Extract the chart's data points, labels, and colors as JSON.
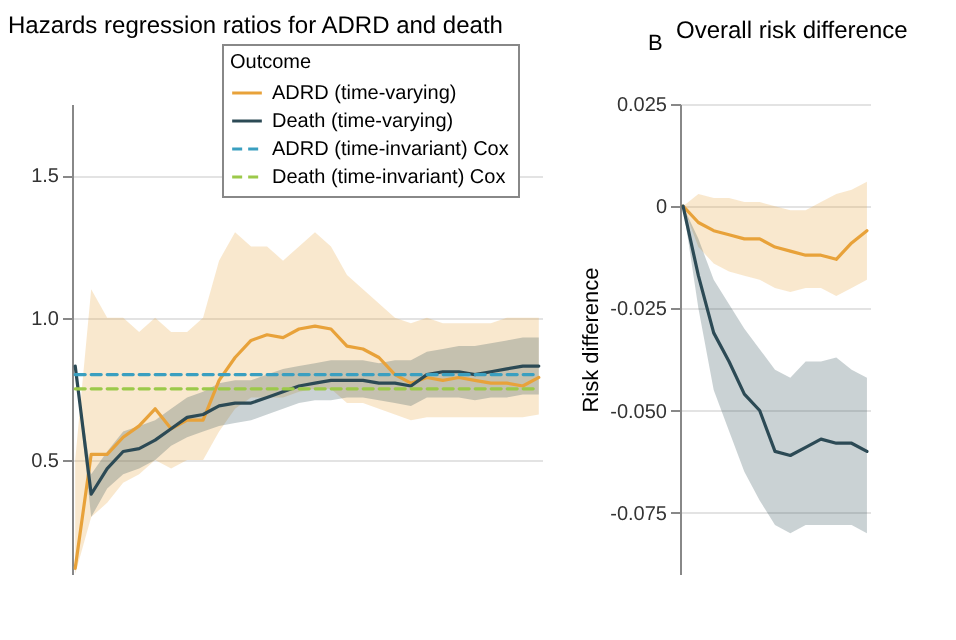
{
  "chart_data": [
    {
      "type": "line",
      "title": "Hazards regression ratios for ADRD and death",
      "legend_title": "Outcome",
      "legend": "top right",
      "grid": "y",
      "categories": [
        null,
        null,
        null,
        null,
        null,
        null,
        null,
        null,
        null,
        null,
        null,
        null,
        null,
        null,
        null,
        null,
        null,
        null,
        null,
        null,
        null,
        null,
        null,
        null,
        null,
        null,
        null,
        null,
        null,
        null
      ],
      "ylim": [
        0.1,
        1.75
      ],
      "yticks": [
        0.5,
        {
          "value": 1.0,
          "label": "1.0"
        },
        1.5
      ],
      "series": [
        {
          "name": "ADRD (time-varying)",
          "color": "#e8a23a",
          "values": [
            0.12,
            0.52,
            0.52,
            0.58,
            0.62,
            0.68,
            0.61,
            0.64,
            0.64,
            0.78,
            0.86,
            0.92,
            0.94,
            0.93,
            0.96,
            0.97,
            0.96,
            0.9,
            0.89,
            0.86,
            0.8,
            0.77,
            0.79,
            0.78,
            0.79,
            0.78,
            0.77,
            0.77,
            0.76,
            0.79
          ],
          "lower": [
            0.1,
            0.3,
            0.35,
            0.42,
            0.45,
            0.5,
            0.47,
            0.5,
            0.5,
            0.6,
            0.68,
            0.72,
            0.72,
            0.72,
            0.74,
            0.75,
            0.75,
            0.7,
            0.7,
            0.68,
            0.66,
            0.64,
            0.65,
            0.65,
            0.65,
            0.65,
            0.65,
            0.65,
            0.65,
            0.66
          ],
          "upper": [
            0.5,
            1.1,
            1.0,
            1.0,
            0.95,
            1.0,
            0.95,
            0.95,
            1.0,
            1.2,
            1.3,
            1.25,
            1.25,
            1.2,
            1.25,
            1.3,
            1.25,
            1.15,
            1.1,
            1.05,
            1.0,
            0.98,
            1.0,
            0.98,
            0.98,
            0.98,
            0.98,
            1.0,
            1.0,
            1.0
          ]
        },
        {
          "name": "Death (time-varying)",
          "color": "#2c4a55",
          "values": [
            0.83,
            0.38,
            0.47,
            0.53,
            0.54,
            0.57,
            0.61,
            0.65,
            0.66,
            0.69,
            0.7,
            0.7,
            0.72,
            0.74,
            0.76,
            0.77,
            0.78,
            0.78,
            0.78,
            0.77,
            0.77,
            0.76,
            0.8,
            0.81,
            0.81,
            0.8,
            0.81,
            0.82,
            0.83,
            0.83
          ],
          "lower": [
            0.83,
            0.3,
            0.4,
            0.45,
            0.47,
            0.5,
            0.55,
            0.58,
            0.6,
            0.62,
            0.63,
            0.64,
            0.66,
            0.68,
            0.7,
            0.71,
            0.71,
            0.72,
            0.72,
            0.71,
            0.7,
            0.69,
            0.72,
            0.72,
            0.72,
            0.71,
            0.72,
            0.72,
            0.73,
            0.73
          ],
          "upper": [
            0.83,
            0.45,
            0.53,
            0.6,
            0.62,
            0.64,
            0.68,
            0.72,
            0.74,
            0.77,
            0.78,
            0.78,
            0.8,
            0.82,
            0.83,
            0.84,
            0.85,
            0.85,
            0.85,
            0.84,
            0.85,
            0.85,
            0.88,
            0.89,
            0.9,
            0.9,
            0.91,
            0.92,
            0.93,
            0.93
          ]
        },
        {
          "name": "ADRD (time-invariant) Cox",
          "color": "#3a9fc0",
          "line_style": "dashed",
          "values": [
            0.8,
            0.8,
            0.8,
            0.8,
            0.8,
            0.8,
            0.8,
            0.8,
            0.8,
            0.8,
            0.8,
            0.8,
            0.8,
            0.8,
            0.8,
            0.8,
            0.8,
            0.8,
            0.8,
            0.8,
            0.8,
            0.8,
            0.8,
            0.8,
            0.8,
            0.8,
            0.8,
            0.8,
            0.8,
            0.8
          ]
        },
        {
          "name": "Death (time-invariant) Cox",
          "color": "#9cc94a",
          "line_style": "dashed",
          "values": [
            0.75,
            0.75,
            0.75,
            0.75,
            0.75,
            0.75,
            0.75,
            0.75,
            0.75,
            0.75,
            0.75,
            0.75,
            0.75,
            0.75,
            0.75,
            0.75,
            0.75,
            0.75,
            0.75,
            0.75,
            0.75,
            0.75,
            0.75,
            0.75,
            0.75,
            0.75,
            0.75,
            0.75,
            0.75,
            0.75
          ]
        }
      ]
    },
    {
      "type": "line",
      "title": "Overall risk difference",
      "annotations": [
        "B"
      ],
      "ylabel": "Risk difference",
      "grid": "y",
      "categories": [
        null,
        null,
        null,
        null,
        null,
        null,
        null,
        null,
        null,
        null,
        null,
        null,
        null
      ],
      "ylim": [
        -0.09,
        0.025
      ],
      "yticks": [
        0.025,
        0,
        -0.025,
        {
          "value": -0.05,
          "label": "-0.050"
        },
        -0.075
      ],
      "series": [
        {
          "color": "#e8a23a",
          "values": [
            0,
            -0.004,
            -0.006,
            -0.007,
            -0.008,
            -0.008,
            -0.01,
            -0.011,
            -0.012,
            -0.012,
            -0.013,
            -0.009,
            -0.006
          ],
          "lower": [
            0,
            -0.01,
            -0.014,
            -0.016,
            -0.017,
            -0.018,
            -0.02,
            -0.021,
            -0.02,
            -0.02,
            -0.022,
            -0.02,
            -0.018
          ],
          "upper": [
            0,
            0.003,
            0.002,
            0.002,
            0.001,
            0.001,
            0,
            -0.001,
            -0.001,
            0.001,
            0.003,
            0.004,
            0.006
          ]
        },
        {
          "color": "#2c4a55",
          "values": [
            0,
            -0.017,
            -0.031,
            -0.038,
            -0.046,
            -0.05,
            -0.06,
            -0.061,
            -0.059,
            -0.057,
            -0.058,
            -0.058,
            -0.06
          ],
          "lower": [
            0,
            -0.025,
            -0.045,
            -0.055,
            -0.065,
            -0.072,
            -0.078,
            -0.08,
            -0.078,
            -0.078,
            -0.078,
            -0.078,
            -0.08
          ],
          "upper": [
            0,
            -0.008,
            -0.018,
            -0.024,
            -0.03,
            -0.035,
            -0.04,
            -0.042,
            -0.038,
            -0.038,
            -0.037,
            -0.04,
            -0.042
          ]
        }
      ]
    }
  ]
}
